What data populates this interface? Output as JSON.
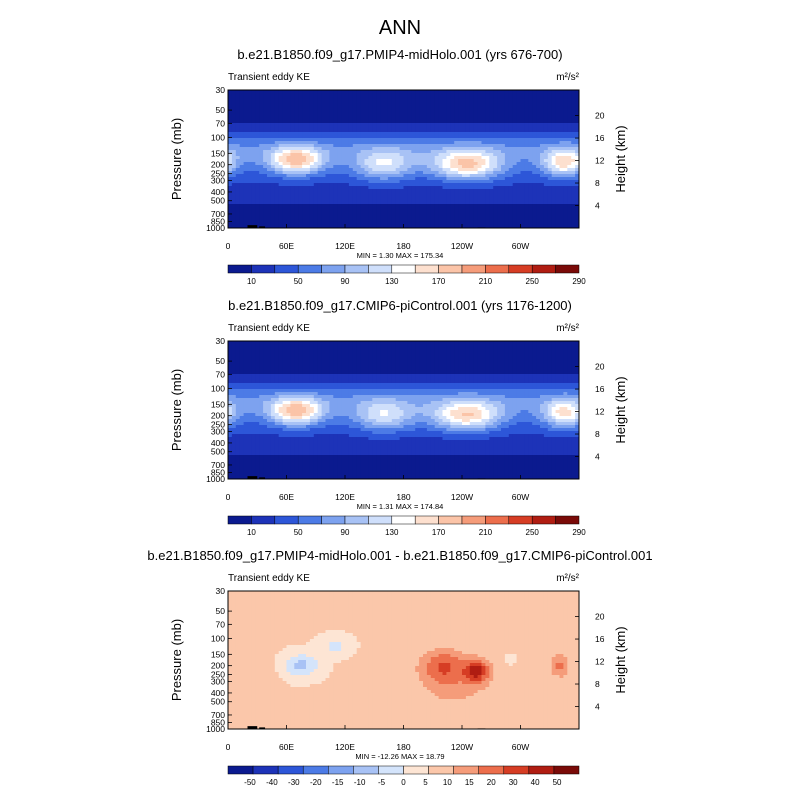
{
  "figure_title": "ANN",
  "colors": {
    "seq": [
      "#0b1a8f",
      "#1d33b8",
      "#2d56d8",
      "#4c7be6",
      "#7da2ef",
      "#a8c2f5",
      "#cfdffb",
      "#ffffff",
      "#fde0cf",
      "#fbc4a8",
      "#f59c7a",
      "#ec6e4c",
      "#d63d24",
      "#b01d12",
      "#7a0a08"
    ],
    "div": [
      "#0b1a8f",
      "#1d33b8",
      "#2d56d8",
      "#4c7be6",
      "#7da2ef",
      "#a8c2f5",
      "#d4e4fb",
      "#fde5d4",
      "#fbc7aa",
      "#f59c7a",
      "#ec6e4c",
      "#d63d24",
      "#b01d12",
      "#7a0a08"
    ],
    "land": "#000000"
  },
  "chart_data": [
    {
      "type": "heatmap",
      "title": "b.e21.B1850.f09_g17.PMIP4-midHolo.001 (yrs 676-700)",
      "left_label": "Transient eddy KE",
      "units": "m²/s²",
      "ylabel": "Pressure (mb)",
      "ylabel_right": "Height (km)",
      "x_ticks": [
        "0",
        "60E",
        "120E",
        "180",
        "120W",
        "60W"
      ],
      "x_tick_values": [
        0,
        60,
        120,
        180,
        240,
        300
      ],
      "xlim": [
        0,
        360
      ],
      "y_ticks": [
        "30",
        "50",
        "70",
        "100",
        "150",
        "200",
        "250",
        "300",
        "400",
        "500",
        "700",
        "850",
        "1000"
      ],
      "y_tick_values": [
        30,
        50,
        70,
        100,
        150,
        200,
        250,
        300,
        400,
        500,
        700,
        850,
        1000
      ],
      "ylim": [
        1000,
        30
      ],
      "right_ticks": [
        "20",
        "16",
        "12",
        "8",
        "4"
      ],
      "right_tick_values": [
        20,
        16,
        12,
        8,
        4
      ],
      "stats": "MIN =   1.30   MAX = 175.34",
      "colorbar_labels": [
        "10",
        "50",
        "90",
        "130",
        "170",
        "210",
        "250",
        "290"
      ],
      "levels": [
        10,
        30,
        50,
        70,
        90,
        110,
        130,
        150,
        170,
        190,
        210,
        230,
        250,
        270,
        290
      ],
      "palette": "seq",
      "jets": [
        {
          "lon": 70,
          "p": 180,
          "peak": 175,
          "lon_width": 28,
          "p_width": 0.35
        },
        {
          "lon": 245,
          "p": 200,
          "peak": 170,
          "lon_width": 35,
          "p_width": 0.38
        },
        {
          "lon": 345,
          "p": 190,
          "peak": 150,
          "lon_width": 22,
          "p_width": 0.35
        },
        {
          "lon": 160,
          "p": 200,
          "peak": 110,
          "lon_width": 30,
          "p_width": 0.4
        }
      ]
    },
    {
      "type": "heatmap",
      "title": "b.e21.B1850.f09_g17.CMIP6-piControl.001 (yrs 1176-1200)",
      "left_label": "Transient eddy KE",
      "units": "m²/s²",
      "ylabel": "Pressure (mb)",
      "ylabel_right": "Height (km)",
      "x_ticks": [
        "0",
        "60E",
        "120E",
        "180",
        "120W",
        "60W"
      ],
      "x_tick_values": [
        0,
        60,
        120,
        180,
        240,
        300
      ],
      "xlim": [
        0,
        360
      ],
      "y_ticks": [
        "30",
        "50",
        "70",
        "100",
        "150",
        "200",
        "250",
        "300",
        "400",
        "500",
        "700",
        "850",
        "1000"
      ],
      "y_tick_values": [
        30,
        50,
        70,
        100,
        150,
        200,
        250,
        300,
        400,
        500,
        700,
        850,
        1000
      ],
      "ylim": [
        1000,
        30
      ],
      "right_ticks": [
        "20",
        "16",
        "12",
        "8",
        "4"
      ],
      "right_tick_values": [
        20,
        16,
        12,
        8,
        4
      ],
      "stats": "MIN =   1.31   MAX = 174.84",
      "colorbar_labels": [
        "10",
        "50",
        "90",
        "130",
        "170",
        "210",
        "250",
        "290"
      ],
      "levels": [
        10,
        30,
        50,
        70,
        90,
        110,
        130,
        150,
        170,
        190,
        210,
        230,
        250,
        270,
        290
      ],
      "palette": "seq",
      "jets": [
        {
          "lon": 70,
          "p": 180,
          "peak": 174,
          "lon_width": 28,
          "p_width": 0.35
        },
        {
          "lon": 245,
          "p": 200,
          "peak": 160,
          "lon_width": 35,
          "p_width": 0.38
        },
        {
          "lon": 345,
          "p": 190,
          "peak": 140,
          "lon_width": 22,
          "p_width": 0.35
        },
        {
          "lon": 160,
          "p": 200,
          "peak": 105,
          "lon_width": 30,
          "p_width": 0.4
        }
      ]
    },
    {
      "type": "heatmap",
      "title": "b.e21.B1850.f09_g17.PMIP4-midHolo.001 - b.e21.B1850.f09_g17.CMIP6-piControl.001",
      "left_label": "Transient eddy KE",
      "units": "m²/s²",
      "ylabel": "Pressure (mb)",
      "ylabel_right": "Height (km)",
      "x_ticks": [
        "0",
        "60E",
        "120E",
        "180",
        "120W",
        "60W"
      ],
      "x_tick_values": [
        0,
        60,
        120,
        180,
        240,
        300
      ],
      "xlim": [
        0,
        360
      ],
      "y_ticks": [
        "30",
        "50",
        "70",
        "100",
        "150",
        "200",
        "250",
        "300",
        "400",
        "500",
        "700",
        "850",
        "1000"
      ],
      "y_tick_values": [
        30,
        50,
        70,
        100,
        150,
        200,
        250,
        300,
        400,
        500,
        700,
        850,
        1000
      ],
      "ylim": [
        1000,
        30
      ],
      "right_ticks": [
        "20",
        "16",
        "12",
        "8",
        "4"
      ],
      "right_tick_values": [
        20,
        16,
        12,
        8,
        4
      ],
      "stats": "MIN = -12.26   MAX =  18.79",
      "colorbar_labels": [
        "-50",
        "-40",
        "-30",
        "-20",
        "-15",
        "-10",
        "-5",
        "0",
        "5",
        "10",
        "15",
        "20",
        "30",
        "40",
        "50"
      ],
      "levels": [
        -50,
        -40,
        -30,
        -20,
        -15,
        -10,
        -5,
        0,
        5,
        10,
        15,
        20,
        30,
        40,
        50
      ],
      "palette": "div",
      "anomalies": [
        {
          "lon": 255,
          "p": 230,
          "peak": 18.8,
          "lon_width": 12,
          "p_width": 0.28
        },
        {
          "lon": 220,
          "p": 200,
          "peak": 11,
          "lon_width": 22,
          "p_width": 0.4
        },
        {
          "lon": 340,
          "p": 200,
          "peak": 10,
          "lon_width": 10,
          "p_width": 0.3
        },
        {
          "lon": 232,
          "p": 300,
          "peak": 7,
          "lon_width": 38,
          "p_width": 0.7
        },
        {
          "lon": 20,
          "p": 220,
          "peak": 2.5,
          "lon_width": 30,
          "p_width": 0.35
        },
        {
          "lon": 75,
          "p": 200,
          "peak": -12.3,
          "lon_width": 18,
          "p_width": 0.3
        },
        {
          "lon": 110,
          "p": 120,
          "peak": -7,
          "lon_width": 15,
          "p_width": 0.25
        },
        {
          "lon": 290,
          "p": 170,
          "peak": -5,
          "lon_width": 5,
          "p_width": 0.12
        },
        {
          "lon": 140,
          "p": 550,
          "peak": 2.5,
          "lon_width": 28,
          "p_width": 0.3
        }
      ]
    }
  ]
}
